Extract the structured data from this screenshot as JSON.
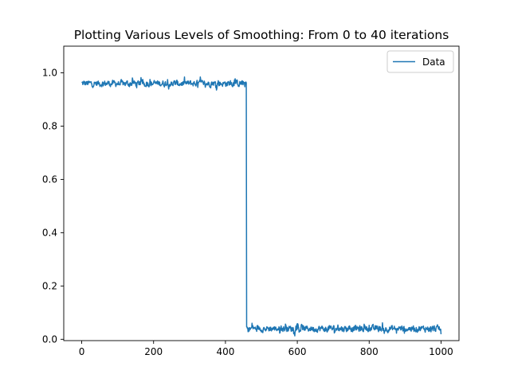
{
  "chart_data": {
    "type": "line",
    "title": "Plotting Various Levels of Smoothing: From 0 to 40 iterations",
    "xlabel": "",
    "ylabel": "",
    "xlim": [
      -50,
      1050
    ],
    "ylim": [
      -0.005,
      1.1
    ],
    "xticks": [
      0,
      200,
      400,
      600,
      800,
      1000
    ],
    "yticks": [
      0.0,
      0.2,
      0.4,
      0.6,
      0.8,
      1.0
    ],
    "xtick_labels": [
      "0",
      "200",
      "400",
      "600",
      "800",
      "1000"
    ],
    "ytick_labels": [
      "0.0",
      "0.2",
      "0.4",
      "0.6",
      "0.8",
      "1.0"
    ],
    "grid": false,
    "legend": {
      "position": "top-right",
      "entries": [
        "Data"
      ]
    },
    "series": [
      {
        "name": "Data",
        "color": "#1f77b4",
        "x_start": 0,
        "x_end": 1000,
        "step_x": 458,
        "segments": [
          {
            "x_from": 0,
            "x_to": 458,
            "mean": 0.96,
            "range": [
              0.92,
              1.0
            ]
          },
          {
            "x_from": 459,
            "x_to": 1000,
            "mean": 0.04,
            "range": [
              0.0,
              0.08
            ]
          }
        ]
      }
    ]
  }
}
